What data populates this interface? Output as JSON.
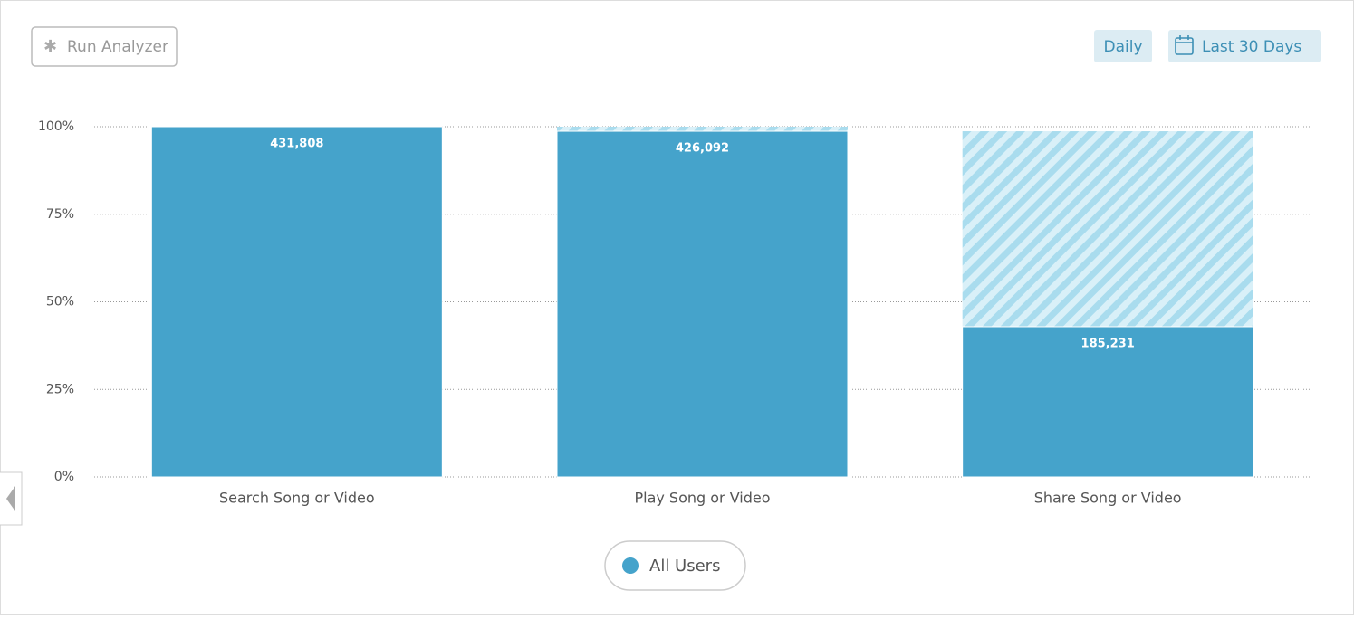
{
  "toolbar": {
    "run_analyzer": "Run Analyzer",
    "interval": "Daily",
    "range": "Last 30 Days"
  },
  "chart_data": {
    "type": "funnel",
    "categories": [
      "Search Song or Video",
      "Play Song or Video",
      "Share Song or Video"
    ],
    "series": [
      {
        "name": "All Users",
        "color": "#45a3cb",
        "values": [
          100,
          98.7,
          42.9
        ],
        "counts": [
          431808,
          426092,
          185231
        ],
        "count_labels": [
          "431,808",
          "426,092",
          "185,231"
        ]
      }
    ],
    "ylim": [
      0,
      100
    ],
    "yticks": [
      {
        "value": 0,
        "label": "0%"
      },
      {
        "value": 25,
        "label": "25%"
      },
      {
        "value": 50,
        "label": "50%"
      },
      {
        "value": 75,
        "label": "75%"
      },
      {
        "value": 100,
        "label": "100%"
      }
    ],
    "grid": true
  }
}
